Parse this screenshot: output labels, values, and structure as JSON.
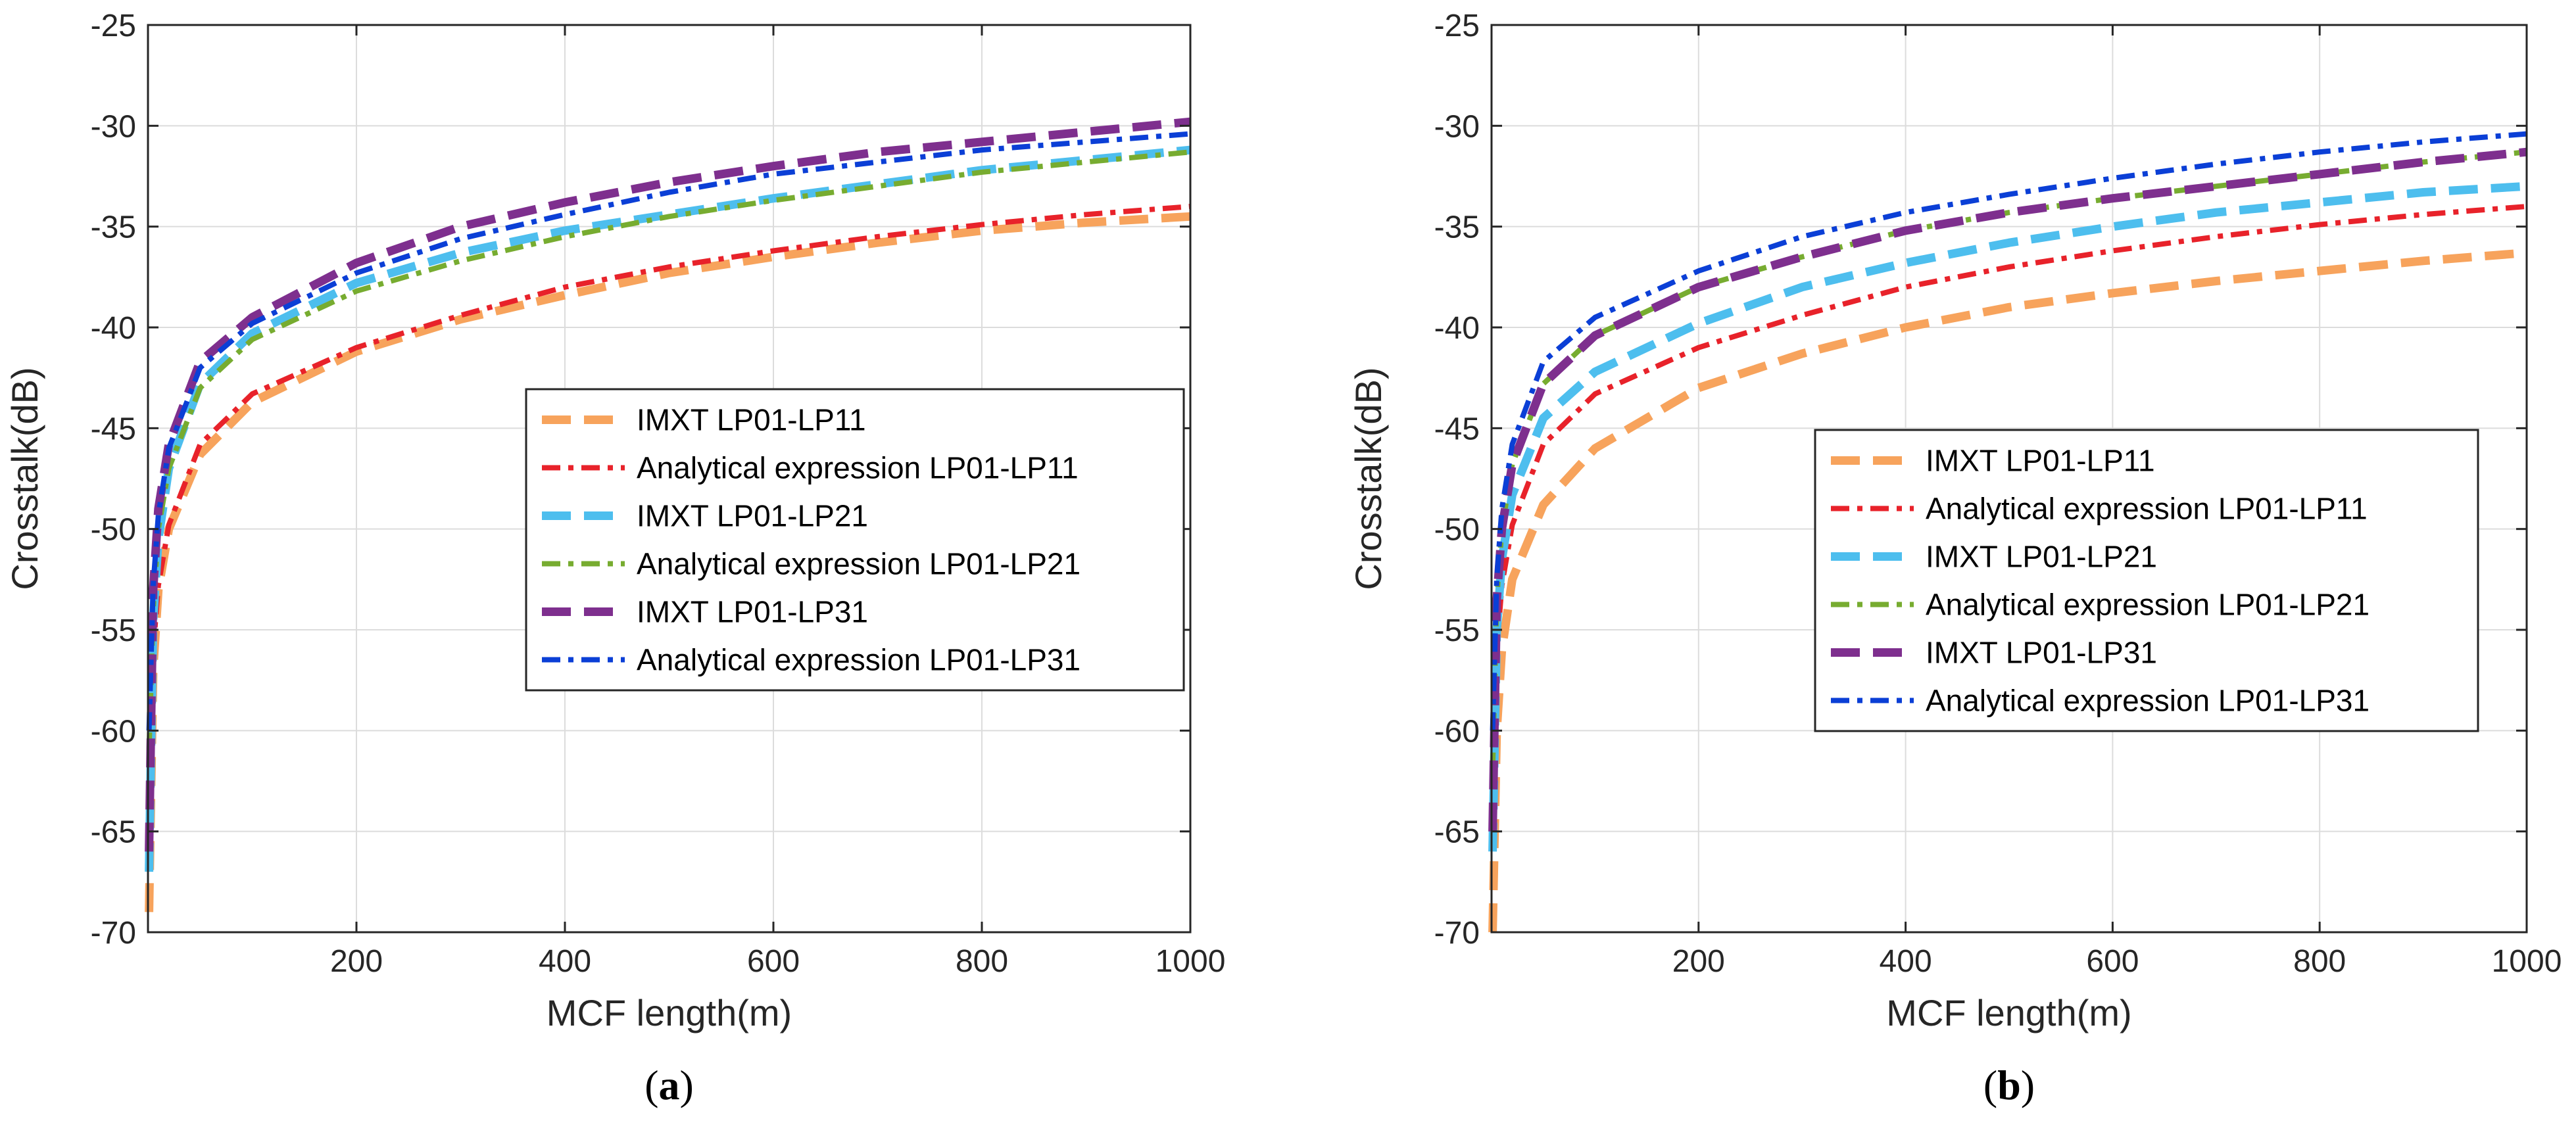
{
  "chart_data": [
    {
      "type": "line",
      "panel_label": "(a)",
      "panel_letter": "a",
      "xlabel": "MCF length(m)",
      "ylabel": "Crosstalk(dB)",
      "xlim": [
        0,
        1000
      ],
      "ylim": [
        -70,
        -25
      ],
      "xticks": [
        200,
        400,
        600,
        800,
        1000
      ],
      "yticks": [
        -25,
        -30,
        -35,
        -40,
        -45,
        -50,
        -55,
        -60,
        -65,
        -70
      ],
      "grid": true,
      "legend": "center-right",
      "x": [
        1,
        5,
        10,
        20,
        50,
        100,
        200,
        300,
        400,
        500,
        600,
        700,
        800,
        900,
        1000
      ],
      "series": [
        {
          "name": "IMXT LP01-LP11",
          "color": "#F7A35C",
          "style": "dash",
          "values": [
            -69.0,
            -57.0,
            -53.0,
            -50.0,
            -46.3,
            -43.7,
            -41.2,
            -39.6,
            -38.4,
            -37.3,
            -36.5,
            -35.8,
            -35.2,
            -34.8,
            -34.5
          ]
        },
        {
          "name": "Analytical expression LP01-LP11",
          "color": "#E8222A",
          "style": "dashdot",
          "values": [
            -64.0,
            -56.0,
            -52.8,
            -49.8,
            -45.8,
            -43.3,
            -41.0,
            -39.4,
            -38.0,
            -37.0,
            -36.2,
            -35.5,
            -34.9,
            -34.4,
            -34.0
          ]
        },
        {
          "name": "IMXT LP01-LP21",
          "color": "#4DBEEE",
          "style": "dash",
          "values": [
            -67.0,
            -54.5,
            -50.5,
            -47.0,
            -42.8,
            -40.3,
            -37.8,
            -36.3,
            -35.2,
            -34.4,
            -33.6,
            -32.9,
            -32.2,
            -31.7,
            -31.2
          ]
        },
        {
          "name": "Analytical expression LP01-LP21",
          "color": "#77AC30",
          "style": "dashdot",
          "values": [
            -61.0,
            -54.0,
            -50.0,
            -47.0,
            -43.0,
            -40.6,
            -38.2,
            -36.7,
            -35.5,
            -34.5,
            -33.7,
            -33.0,
            -32.3,
            -31.8,
            -31.3
          ]
        },
        {
          "name": "IMXT LP01-LP31",
          "color": "#7E2F8E",
          "style": "dash",
          "values": [
            -66.0,
            -53.0,
            -49.0,
            -45.8,
            -41.7,
            -39.5,
            -36.8,
            -35.0,
            -33.8,
            -32.8,
            -32.0,
            -31.3,
            -30.8,
            -30.3,
            -29.8
          ]
        },
        {
          "name": "Analytical expression LP01-LP31",
          "color": "#0B3FD6",
          "style": "dashdot",
          "values": [
            -60.0,
            -52.8,
            -49.3,
            -46.0,
            -42.0,
            -39.8,
            -37.3,
            -35.6,
            -34.4,
            -33.3,
            -32.4,
            -31.8,
            -31.2,
            -30.8,
            -30.4
          ]
        }
      ]
    },
    {
      "type": "line",
      "panel_label": "(b)",
      "panel_letter": "b",
      "xlabel": "MCF length(m)",
      "ylabel": "Crosstalk(dB)",
      "xlim": [
        0,
        1000
      ],
      "ylim": [
        -70,
        -25
      ],
      "xticks": [
        200,
        400,
        600,
        800,
        1000
      ],
      "yticks": [
        -25,
        -30,
        -35,
        -40,
        -45,
        -50,
        -55,
        -60,
        -65,
        -70
      ],
      "grid": true,
      "legend": "center-right",
      "x": [
        1,
        5,
        10,
        20,
        50,
        100,
        200,
        300,
        400,
        500,
        600,
        700,
        800,
        900,
        1000
      ],
      "series": [
        {
          "name": "IMXT LP01-LP11",
          "color": "#F7A35C",
          "style": "dash",
          "values": [
            -70.0,
            -60.0,
            -56.0,
            -52.5,
            -48.8,
            -46.0,
            -43.0,
            -41.3,
            -40.0,
            -39.0,
            -38.3,
            -37.7,
            -37.2,
            -36.7,
            -36.3
          ]
        },
        {
          "name": "Analytical expression LP01-LP11",
          "color": "#E8222A",
          "style": "dashdot",
          "values": [
            -64.0,
            -56.0,
            -52.8,
            -49.8,
            -45.8,
            -43.3,
            -41.0,
            -39.4,
            -38.0,
            -37.0,
            -36.2,
            -35.5,
            -34.9,
            -34.4,
            -34.0
          ]
        },
        {
          "name": "IMXT LP01-LP21",
          "color": "#4DBEEE",
          "style": "dash",
          "values": [
            -66.0,
            -55.0,
            -51.5,
            -48.3,
            -44.5,
            -42.2,
            -39.8,
            -38.0,
            -36.8,
            -35.8,
            -35.0,
            -34.3,
            -33.8,
            -33.3,
            -33.0
          ]
        },
        {
          "name": "Analytical expression LP01-LP21",
          "color": "#77AC30",
          "style": "dashdot",
          "values": [
            -62.0,
            -53.5,
            -50.0,
            -46.8,
            -42.8,
            -40.4,
            -38.0,
            -36.5,
            -35.2,
            -34.3,
            -33.6,
            -33.0,
            -32.4,
            -31.8,
            -31.3
          ]
        },
        {
          "name": "IMXT LP01-LP31",
          "color": "#7E2F8E",
          "style": "dash",
          "values": [
            -65.0,
            -53.5,
            -50.0,
            -46.8,
            -42.8,
            -40.4,
            -38.0,
            -36.5,
            -35.2,
            -34.3,
            -33.6,
            -33.0,
            -32.4,
            -31.8,
            -31.3
          ]
        },
        {
          "name": "Analytical expression LP01-LP31",
          "color": "#0B3FD6",
          "style": "dashdot",
          "values": [
            -60.0,
            -52.5,
            -49.0,
            -45.8,
            -41.7,
            -39.5,
            -37.2,
            -35.5,
            -34.3,
            -33.4,
            -32.6,
            -31.9,
            -31.3,
            -30.8,
            -30.4
          ]
        }
      ]
    }
  ]
}
